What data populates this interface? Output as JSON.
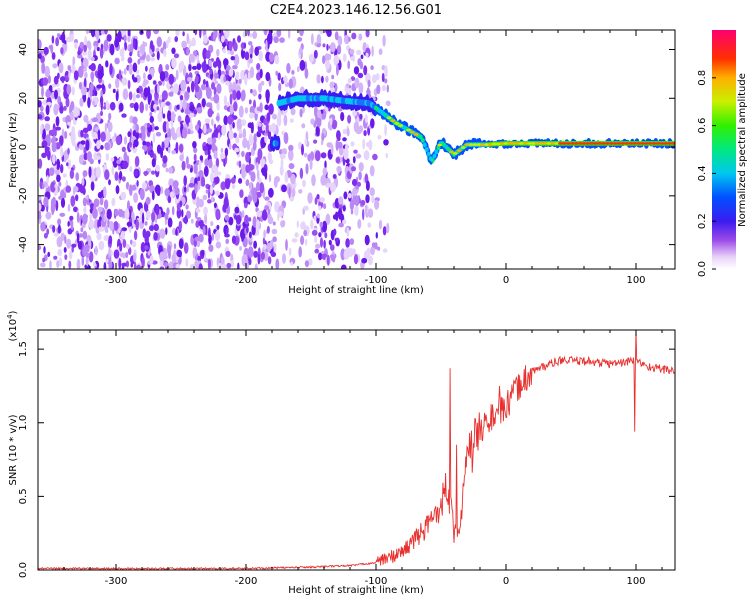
{
  "title": "C2E4.2023.146.12.56.G01",
  "chart_data": [
    {
      "type": "heatmap",
      "xlabel": "Height of straight line (km)",
      "ylabel": "Frequency (Hz)",
      "xlim": [
        -360,
        130
      ],
      "ylim": [
        -50,
        48
      ],
      "xticks": [
        -300,
        -200,
        -100,
        0,
        100
      ],
      "xtick_labels": [
        "-300",
        "-200",
        "-100",
        "0",
        "100"
      ],
      "yticks": [
        -40,
        -20,
        0,
        20,
        40
      ],
      "ytick_labels": [
        "-40",
        "-20",
        "0",
        "20",
        "40"
      ],
      "colorbar": {
        "label": "Normalized spectral amplitude",
        "range": [
          0,
          1
        ],
        "ticks": [
          0.0,
          0.2,
          0.4,
          0.6,
          0.8
        ],
        "tick_labels": [
          "0.0",
          "0.2",
          "0.4",
          "0.6",
          "0.8"
        ]
      },
      "ridge": {
        "description_points": [
          [
            -175,
            18
          ],
          [
            -160,
            20
          ],
          [
            -140,
            20
          ],
          [
            -125,
            19
          ],
          [
            -105,
            18
          ],
          [
            -95,
            14
          ],
          [
            -85,
            10
          ],
          [
            -75,
            7
          ],
          [
            -65,
            4
          ],
          [
            -57,
            -6
          ],
          [
            -50,
            2
          ],
          [
            -40,
            -3
          ],
          [
            -30,
            1
          ],
          [
            -15,
            1
          ],
          [
            0,
            1.5
          ],
          [
            30,
            1.5
          ],
          [
            60,
            1.5
          ],
          [
            100,
            1.5
          ],
          [
            130,
            1.5
          ]
        ]
      }
    },
    {
      "type": "line",
      "xlabel": "Height of straight line (km)",
      "ylabel": "SNR (10 * v/v)",
      "y_multiplier_label": "(x10",
      "y_multiplier_exp": "4",
      "xlim": [
        -360,
        130
      ],
      "ylim": [
        0,
        1.63
      ],
      "xticks": [
        -300,
        -200,
        -100,
        0,
        100
      ],
      "xtick_labels": [
        "-300",
        "-200",
        "-100",
        "0",
        "100"
      ],
      "yticks": [
        0.0,
        0.5,
        1.0,
        1.5
      ],
      "ytick_labels": [
        "0.0",
        "0.5",
        "1.0",
        "1.5"
      ],
      "color": "#e8312f",
      "envelope": {
        "x": [
          -360,
          -200,
          -150,
          -120,
          -100,
          -80,
          -60,
          -50,
          -45,
          -40,
          -35,
          -30,
          -20,
          -10,
          0,
          10,
          20,
          40,
          60,
          80,
          100,
          110,
          130
        ],
        "y": [
          0.01,
          0.01,
          0.02,
          0.03,
          0.05,
          0.12,
          0.3,
          0.45,
          0.6,
          0.25,
          0.3,
          0.75,
          0.95,
          1.05,
          1.1,
          1.25,
          1.35,
          1.42,
          1.42,
          1.4,
          1.42,
          1.38,
          1.35
        ]
      },
      "spikes": [
        [
          -43,
          1.37
        ],
        [
          -38,
          0.85
        ],
        [
          -22,
          1.0
        ],
        [
          -5,
          1.25
        ],
        [
          99,
          0.94
        ],
        [
          100,
          1.63
        ]
      ]
    }
  ]
}
